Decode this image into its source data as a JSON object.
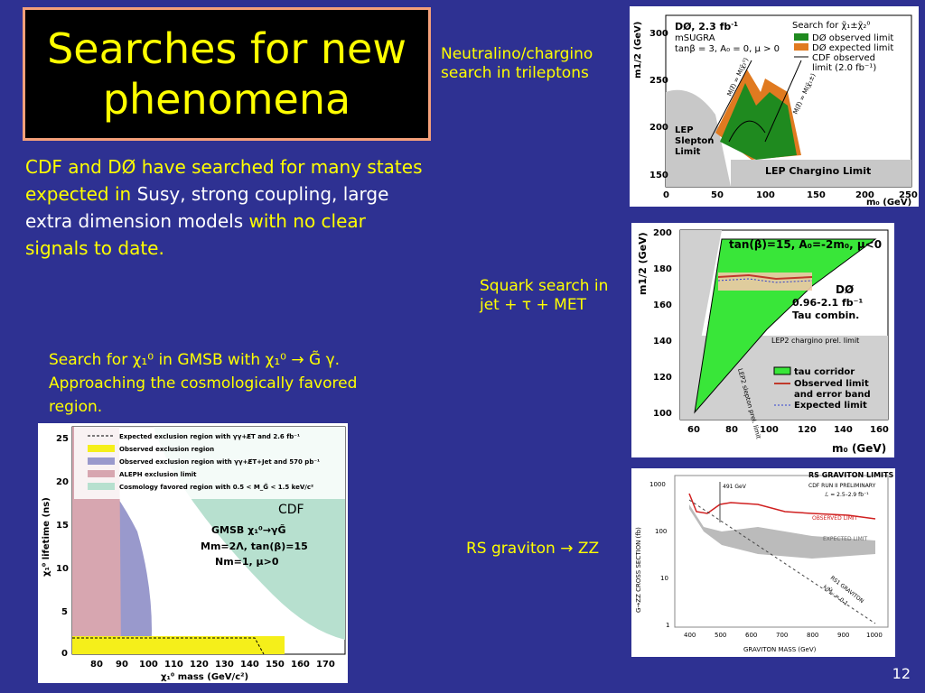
{
  "title": {
    "line1": "Searches for new",
    "line2": "phenomena"
  },
  "intro": {
    "p1": "CDF and DØ have searched for many states expected in ",
    "p2": "Susy, strong coupling, large extra dimension models",
    "p3": " with no clear signals to date."
  },
  "captions": {
    "trileptons": "Neutralino/chargino search in trileptons",
    "squark": "Squark search in jet + τ + MET",
    "gmsb": "Search for χ₁⁰ in GMSB with χ₁⁰ → G̃ γ. Approaching the cosmologically favored region.",
    "graviton": "RS graviton → ZZ",
    "cdf_label": "CDF"
  },
  "page_number": "12",
  "plot_d0": {
    "header": "DØ, 2.3 fb",
    "header_sup": "-1",
    "sub1": "mSUGRA",
    "sub2": "tanβ = 3, A₀ = 0, μ > 0",
    "legend_title": "Search for χ̃₁±χ̃₂⁰",
    "legend": [
      "DØ observed limit",
      "DØ expected limit",
      "CDF observed",
      "limit (2.0 fb⁻¹)"
    ],
    "ylabel": "m1/2 (GeV)",
    "xlabel": "m₀ (GeV)",
    "yticks": [
      "300",
      "250",
      "200",
      "150"
    ],
    "xticks": [
      "0",
      "50",
      "100",
      "150",
      "200",
      "250"
    ],
    "lep_slepton": [
      "LEP",
      "Slepton",
      "Limit"
    ],
    "lep_chargino": "LEP Chargino Limit",
    "diag1": "M(ℓ̃) = M(χ̃₂⁰)",
    "diag2": "M(ℓ̃) = M(χ̃₁±)"
  },
  "plot_tau": {
    "header": "tan(β)=15, A₀=-2m₀, μ<0",
    "d0": "DØ",
    "lumi": "0.96-2.1 fb⁻¹",
    "combin": "Tau combin.",
    "lep2": "LEP2 chargino prel. limit",
    "slepton": "LEP2 slepton prel. limit",
    "legend": [
      "tau corridor",
      "Observed limit",
      "and error band",
      "Expected limit"
    ],
    "ylabel": "m1/2 (GeV)",
    "xlabel": "m₀ (GeV)",
    "yticks": [
      "200",
      "180",
      "160",
      "140",
      "120",
      "100"
    ],
    "xticks": [
      "60",
      "80",
      "100",
      "120",
      "140",
      "160"
    ]
  },
  "plot_graviton": {
    "title": "RS GRAVITON LIMITS",
    "sub1": "CDF RUN II PRELIMINARY",
    "sub2": "ℒ = 2.5–2.9 fb⁻¹",
    "obs": "OBSERVED LIMIT",
    "exp": "EXPECTED LIMIT",
    "marker": "491 GeV",
    "rs1": "RS1 GRAVITON",
    "kmpl": "k/M̄ₚₗ = 0.1",
    "ylabel": "G→ZZ CROSS SECTION (fb)",
    "xlabel": "GRAVITON MASS (GeV)",
    "yticks": [
      "1000",
      "100",
      "10",
      "1"
    ],
    "xticks": [
      "400",
      "500",
      "600",
      "700",
      "800",
      "900",
      "1000"
    ]
  },
  "plot_gmsb": {
    "legend": [
      "Expected exclusion region with γγ+E̸T and 2.6 fb⁻¹",
      "Observed exclusion region",
      "Observed exclusion region with γγ+E̸T+Jet and 570 pb⁻¹",
      "ALEPH exclusion limit",
      "Cosmology favored region with 0.5 < M_G̃ < 1.5 keV/c²"
    ],
    "model": [
      "GMSB χ₁⁰→γG̃",
      "Mm=2Λ, tan(β)=15",
      "Nm=1, μ>0"
    ],
    "ylabel": "χ₁⁰ lifetime (ns)",
    "xlabel": "χ₁⁰ mass (GeV/c²)",
    "yticks": [
      "25",
      "20",
      "15",
      "10",
      "5",
      "0"
    ],
    "xticks": [
      "80",
      "90",
      "100",
      "110",
      "120",
      "130",
      "140",
      "150",
      "160",
      "170"
    ]
  }
}
